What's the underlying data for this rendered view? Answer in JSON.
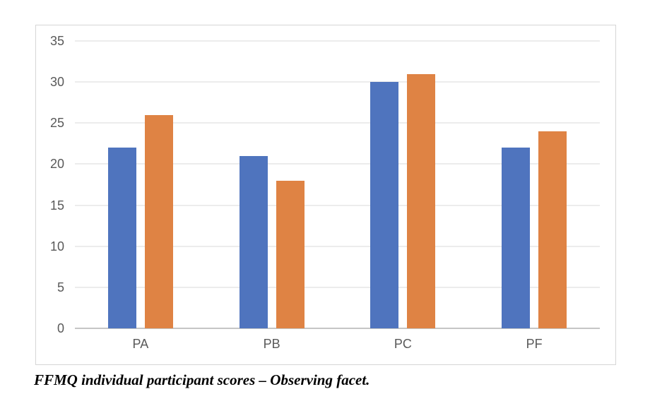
{
  "chart_data": {
    "type": "bar",
    "title": "",
    "xlabel": "",
    "ylabel": "",
    "categories": [
      "PA",
      "PB",
      "PC",
      "PF"
    ],
    "series": [
      {
        "name": "blue",
        "color": "#4F74BE",
        "values": [
          22,
          21,
          30,
          22
        ]
      },
      {
        "name": "orange",
        "color": "#DF8344",
        "values": [
          26,
          18,
          31,
          24
        ]
      }
    ],
    "ylim": [
      0,
      35
    ],
    "yticks": [
      0,
      5,
      10,
      15,
      20,
      25,
      30,
      35
    ],
    "grid": true,
    "legend": false,
    "grid_color": "#d9d9d9",
    "axis_line_color": "#c6c6c6",
    "tick_label_color": "#595959",
    "plot_border_color": "#d6d6d6"
  },
  "caption": "FFMQ individual participant scores – Observing facet."
}
